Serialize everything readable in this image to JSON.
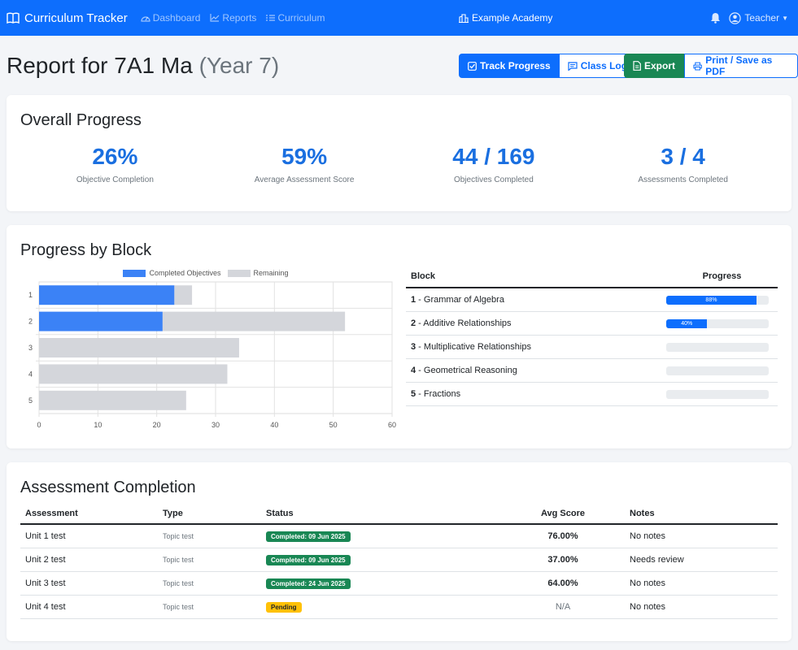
{
  "navbar": {
    "brand": "Curriculum Tracker",
    "links": [
      "Dashboard",
      "Reports",
      "Curriculum"
    ],
    "school": "Example Academy",
    "user": "Teacher"
  },
  "header": {
    "title": "Report for 7A1 Ma",
    "subtitle": "(Year 7)",
    "buttons": {
      "track_progress": "Track Progress",
      "class_log": "Class Log",
      "export": "Export",
      "print": "Print / Save as PDF"
    }
  },
  "overall": {
    "title": "Overall Progress",
    "stats": [
      {
        "value": "26%",
        "label": "Objective Completion"
      },
      {
        "value": "59%",
        "label": "Average Assessment Score"
      },
      {
        "value": "44 / 169",
        "label": "Objectives Completed"
      },
      {
        "value": "3 / 4",
        "label": "Assessments Completed"
      }
    ]
  },
  "blocks": {
    "title": "Progress by Block",
    "table_headers": {
      "block": "Block",
      "progress": "Progress"
    },
    "rows": [
      {
        "num": "1",
        "name": " - Grammar of Algebra",
        "progress": 0.88,
        "label": "88%"
      },
      {
        "num": "2",
        "name": " - Additive Relationships",
        "progress": 0.4,
        "label": "40%"
      },
      {
        "num": "3",
        "name": " - Multiplicative Relationships",
        "progress": 0,
        "label": ""
      },
      {
        "num": "4",
        "name": " - Geometrical Reasoning",
        "progress": 0,
        "label": ""
      },
      {
        "num": "5",
        "name": " - Fractions",
        "progress": 0,
        "label": ""
      }
    ]
  },
  "chart_data": {
    "type": "bar",
    "orientation": "horizontal",
    "stacked": true,
    "categories": [
      "1",
      "2",
      "3",
      "4",
      "5"
    ],
    "series": [
      {
        "name": "Completed Objectives",
        "values": [
          23,
          21,
          0,
          0,
          0
        ],
        "color": "#3b82f6"
      },
      {
        "name": "Remaining",
        "values": [
          3,
          31,
          34,
          32,
          25
        ],
        "color": "#d4d6db"
      }
    ],
    "xlim": [
      0,
      60
    ],
    "xticks": [
      0,
      10,
      20,
      30,
      40,
      50,
      60
    ],
    "grid": true,
    "legend": "top"
  },
  "assessments": {
    "title": "Assessment Completion",
    "headers": [
      "Assessment",
      "Type",
      "Status",
      "Avg Score",
      "Notes"
    ],
    "rows": [
      {
        "name": "Unit 1 test",
        "type": "Topic test",
        "status": "Completed: 09 Jun 2025",
        "status_kind": "completed",
        "score": "76.00%",
        "notes": "No notes"
      },
      {
        "name": "Unit 2 test",
        "type": "Topic test",
        "status": "Completed: 09 Jun 2025",
        "status_kind": "completed",
        "score": "37.00%",
        "notes": "Needs review"
      },
      {
        "name": "Unit 3 test",
        "type": "Topic test",
        "status": "Completed: 24 Jun 2025",
        "status_kind": "completed",
        "score": "64.00%",
        "notes": "No notes"
      },
      {
        "name": "Unit 4 test",
        "type": "Topic test",
        "status": "Pending",
        "status_kind": "pending",
        "score": "N/A",
        "notes": "No notes"
      }
    ]
  },
  "colors": {
    "primary": "#0d6efd",
    "success": "#198754",
    "warning": "#ffc107",
    "completed_bar": "#3b82f6",
    "remaining_bar": "#d4d6db"
  },
  "icons": {
    "brand": "book-icon",
    "dashboard": "speedometer-icon",
    "reports": "graph-icon",
    "curriculum": "list-icon",
    "school": "building-icon",
    "bell": "bell-icon",
    "user": "person-circle-icon"
  }
}
